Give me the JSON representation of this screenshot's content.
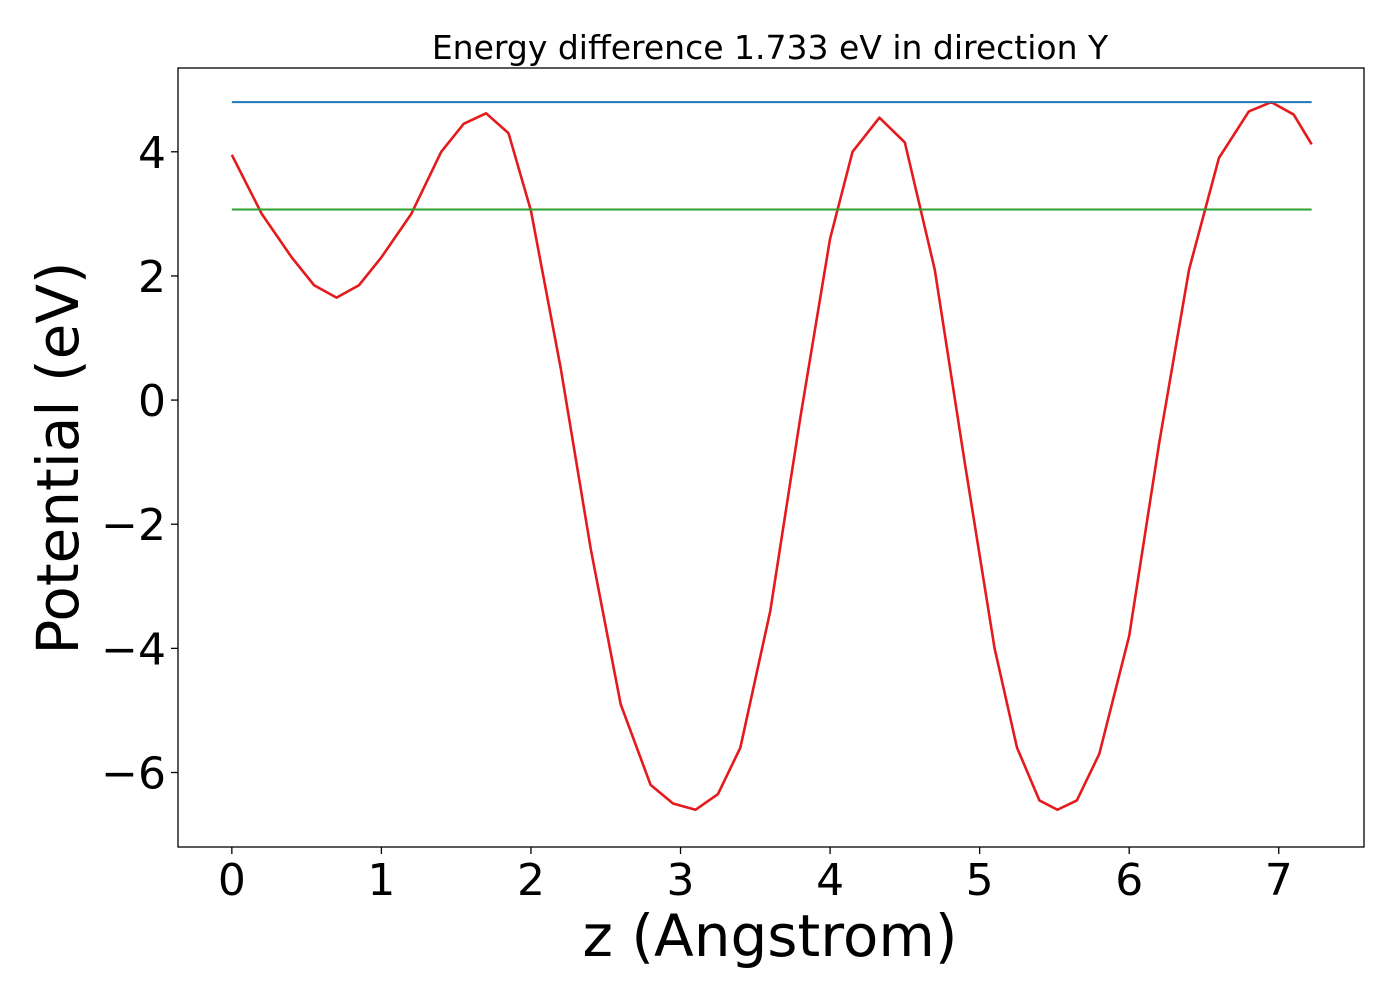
{
  "chart_data": {
    "type": "line",
    "title": "Energy difference 1.733 eV in direction Y",
    "xlabel": "z (Angstrom)",
    "ylabel": "Potential (eV)",
    "xlim": [
      -0.36,
      7.57
    ],
    "ylim": [
      -7.2,
      5.35
    ],
    "xticks": [
      0,
      1,
      2,
      3,
      4,
      5,
      6,
      7
    ],
    "xtick_labels": [
      "0",
      "1",
      "2",
      "3",
      "4",
      "5",
      "6",
      "7"
    ],
    "yticks": [
      4,
      2,
      0,
      -2,
      -4,
      -6
    ],
    "ytick_labels": [
      "4",
      "2",
      "0",
      "−2",
      "−4",
      "−6"
    ],
    "grid": false,
    "colors": {
      "potential": "#e41a1c",
      "upper": "#1f77b4",
      "lower": "#2ca02c",
      "frame": "#000000"
    },
    "series": [
      {
        "key": "potential",
        "x": [
          0.0,
          0.2,
          0.4,
          0.55,
          0.7,
          0.85,
          1.0,
          1.2,
          1.4,
          1.55,
          1.7,
          1.85,
          2.0,
          2.2,
          2.4,
          2.6,
          2.8,
          2.95,
          3.1,
          3.25,
          3.4,
          3.6,
          3.8,
          4.0,
          4.15,
          4.33,
          4.5,
          4.7,
          4.9,
          5.1,
          5.25,
          5.4,
          5.52,
          5.65,
          5.8,
          6.0,
          6.2,
          6.4,
          6.6,
          6.8,
          6.95,
          7.1,
          7.22
        ],
        "y": [
          3.95,
          3.0,
          2.3,
          1.85,
          1.65,
          1.85,
          2.3,
          3.0,
          4.0,
          4.45,
          4.62,
          4.3,
          3.05,
          0.5,
          -2.4,
          -4.9,
          -6.2,
          -6.5,
          -6.6,
          -6.35,
          -5.6,
          -3.4,
          -0.3,
          2.6,
          4.0,
          4.55,
          4.15,
          2.1,
          -1.0,
          -4.0,
          -5.6,
          -6.45,
          -6.6,
          -6.45,
          -5.7,
          -3.8,
          -0.7,
          2.1,
          3.9,
          4.65,
          4.8,
          4.6,
          4.12
        ]
      },
      {
        "key": "upper",
        "x": [
          0,
          7.22
        ],
        "y": [
          4.8,
          4.8
        ]
      },
      {
        "key": "lower",
        "x": [
          0,
          7.22
        ],
        "y": [
          3.07,
          3.07
        ]
      }
    ]
  }
}
